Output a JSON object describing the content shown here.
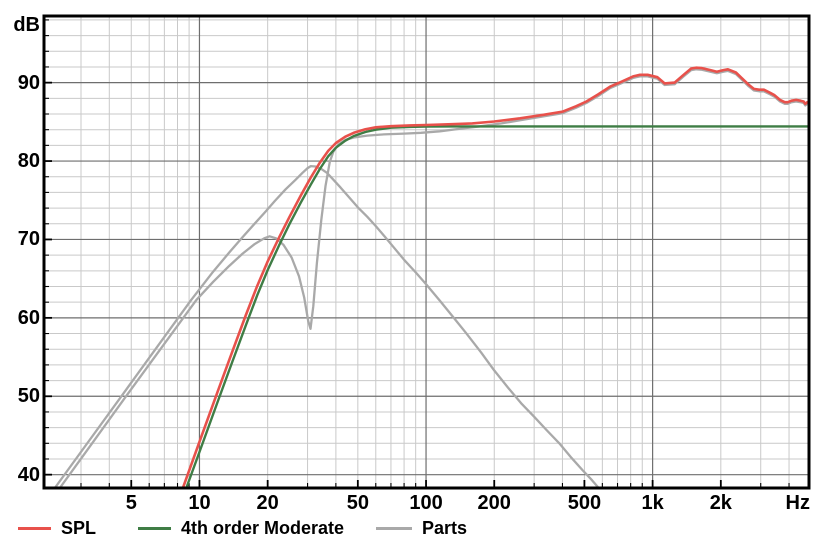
{
  "chart_data": {
    "type": "line",
    "title": "",
    "x_axis": {
      "unit_label": "Hz",
      "scale": "log",
      "min": 2.06,
      "max": 4900,
      "tick_values": [
        5,
        10,
        20,
        50,
        100,
        200,
        500,
        1000,
        2000
      ],
      "tick_labels": [
        "5",
        "10",
        "20",
        "50",
        "100",
        "200",
        "500",
        "1k",
        "2k"
      ],
      "major_values": [
        10,
        100,
        1000
      ]
    },
    "y_axis": {
      "unit_label": "dB",
      "min": 38.3,
      "max": 98.5,
      "tick_values": [
        90,
        80,
        70,
        60,
        50,
        40
      ],
      "minor_step": 2
    },
    "grid": {
      "minor_color": "#c9c9c9",
      "major_color": "#6e6e6e",
      "border_color": "#000000"
    },
    "series": [
      {
        "name": "Parts",
        "color": "#a9a9a9",
        "width": 2.3,
        "lines": [
          [
            [
              2.42,
              38.3
            ],
            [
              3.4,
              44.2
            ],
            [
              4.8,
              50.2
            ],
            [
              6.8,
              56.2
            ],
            [
              9.7,
              62.3
            ],
            [
              11.5,
              64.6
            ],
            [
              13.5,
              66.6
            ],
            [
              15.5,
              68.2
            ],
            [
              17.5,
              69.4
            ],
            [
              19.3,
              70.15
            ],
            [
              20.4,
              70.4
            ],
            [
              21.8,
              70.15
            ],
            [
              23.5,
              69.3
            ],
            [
              25.5,
              67.7
            ],
            [
              27.5,
              65.3
            ],
            [
              29,
              62.6
            ],
            [
              30.2,
              59.6
            ],
            [
              30.9,
              58.6
            ],
            [
              31.8,
              61.5
            ],
            [
              33,
              67.0
            ],
            [
              34.5,
              72.5
            ],
            [
              36,
              76.8
            ],
            [
              37.6,
              79.9
            ],
            [
              39,
              81.2
            ],
            [
              41,
              82.1
            ],
            [
              44,
              82.7
            ],
            [
              48,
              83.0
            ],
            [
              55,
              83.25
            ],
            [
              65,
              83.4
            ],
            [
              80,
              83.5
            ],
            [
              95,
              83.6
            ],
            [
              115,
              83.8
            ],
            [
              140,
              84.1
            ],
            [
              175,
              84.45
            ],
            [
              215,
              84.8
            ],
            [
              260,
              85.2
            ],
            [
              330,
              85.7
            ],
            [
              400,
              86.1
            ],
            [
              460,
              86.8
            ],
            [
              510,
              87.4
            ],
            [
              575,
              88.3
            ],
            [
              650,
              89.3
            ],
            [
              725,
              89.9
            ],
            [
              820,
              90.6
            ],
            [
              880,
              90.8
            ],
            [
              950,
              90.8
            ],
            [
              1050,
              90.5
            ],
            [
              1130,
              89.7
            ],
            [
              1250,
              89.8
            ],
            [
              1370,
              90.8
            ],
            [
              1480,
              91.6
            ],
            [
              1560,
              91.7
            ],
            [
              1650,
              91.65
            ],
            [
              1800,
              91.4
            ],
            [
              1920,
              91.2
            ],
            [
              2050,
              91.4
            ],
            [
              2150,
              91.5
            ],
            [
              2330,
              91.1
            ],
            [
              2450,
              90.5
            ],
            [
              2640,
              89.6
            ],
            [
              2800,
              89.0
            ],
            [
              2950,
              88.9
            ],
            [
              3100,
              88.9
            ],
            [
              3300,
              88.5
            ],
            [
              3450,
              88.2
            ],
            [
              3650,
              87.6
            ],
            [
              3830,
              87.3
            ],
            [
              3950,
              87.3
            ],
            [
              4100,
              87.5
            ],
            [
              4300,
              87.6
            ],
            [
              4500,
              87.5
            ],
            [
              4640,
              87.4
            ],
            [
              4720,
              87.1
            ],
            [
              4820,
              87.3
            ],
            [
              4900,
              87.2
            ]
          ],
          [
            [
              2.3,
              38.3
            ],
            [
              3.25,
              44.3
            ],
            [
              4.6,
              50.3
            ],
            [
              6.5,
              56.3
            ],
            [
              9.2,
              62.3
            ],
            [
              11.5,
              65.9
            ],
            [
              13.5,
              68.3
            ],
            [
              15.5,
              70.3
            ],
            [
              17.5,
              72.0
            ],
            [
              19.5,
              73.5
            ],
            [
              21.5,
              74.9
            ],
            [
              24,
              76.4
            ],
            [
              26.5,
              77.6
            ],
            [
              28.5,
              78.5
            ],
            [
              30,
              79.1
            ],
            [
              31,
              79.35
            ],
            [
              32.5,
              79.3
            ],
            [
              34.5,
              79.0
            ],
            [
              36.5,
              78.5
            ],
            [
              38.5,
              77.8
            ],
            [
              42,
              76.6
            ],
            [
              46,
              75.3
            ],
            [
              50,
              74.1
            ],
            [
              55,
              72.9
            ],
            [
              60,
              71.7
            ],
            [
              66,
              70.3
            ],
            [
              72,
              69.0
            ],
            [
              80,
              67.4
            ],
            [
              90,
              65.8
            ],
            [
              100,
              64.3
            ],
            [
              115,
              62.2
            ],
            [
              130,
              60.3
            ],
            [
              150,
              58.1
            ],
            [
              175,
              55.6
            ],
            [
              200,
              53.3
            ],
            [
              230,
              51.1
            ],
            [
              265,
              49.0
            ],
            [
              300,
              47.4
            ],
            [
              340,
              45.7
            ],
            [
              390,
              43.9
            ],
            [
              440,
              42.1
            ],
            [
              490,
              40.6
            ],
            [
              540,
              39.3
            ],
            [
              578,
              38.3
            ]
          ]
        ]
      },
      {
        "name": "4th order Moderate",
        "color": "#3f7d45",
        "width": 2.4,
        "lines": [
          [
            [
              8.75,
              38.3
            ],
            [
              10,
              42.9
            ],
            [
              12,
              49.2
            ],
            [
              14,
              54.5
            ],
            [
              16,
              59.0
            ],
            [
              18,
              62.9
            ],
            [
              20,
              66.1
            ],
            [
              22.5,
              69.3
            ],
            [
              25,
              72.0
            ],
            [
              28,
              74.7
            ],
            [
              31,
              77.0
            ],
            [
              34,
              79.0
            ],
            [
              37,
              80.6
            ],
            [
              40,
              81.7
            ],
            [
              44,
              82.6
            ],
            [
              48,
              83.2
            ],
            [
              54,
              83.7
            ],
            [
              60,
              84.0
            ],
            [
              70,
              84.25
            ],
            [
              85,
              84.35
            ],
            [
              100,
              84.4
            ],
            [
              130,
              84.42
            ],
            [
              4900,
              84.42
            ]
          ]
        ]
      },
      {
        "name": "SPL",
        "color": "#e8514b",
        "width": 2.6,
        "lines": [
          [
            [
              8.45,
              38.3
            ],
            [
              10,
              44.2
            ],
            [
              12,
              50.5
            ],
            [
              14,
              55.8
            ],
            [
              16,
              60.3
            ],
            [
              18,
              64.1
            ],
            [
              20,
              67.2
            ],
            [
              22.5,
              70.3
            ],
            [
              25,
              72.9
            ],
            [
              28,
              75.6
            ],
            [
              31,
              77.9
            ],
            [
              34,
              79.8
            ],
            [
              37,
              81.3
            ],
            [
              40,
              82.3
            ],
            [
              44,
              83.1
            ],
            [
              48,
              83.6
            ],
            [
              54,
              84.05
            ],
            [
              60,
              84.3
            ],
            [
              70,
              84.45
            ],
            [
              85,
              84.55
            ],
            [
              100,
              84.6
            ],
            [
              130,
              84.7
            ],
            [
              160,
              84.8
            ],
            [
              200,
              85.05
            ],
            [
              260,
              85.45
            ],
            [
              330,
              85.9
            ],
            [
              400,
              86.3
            ],
            [
              460,
              87.0
            ],
            [
              510,
              87.6
            ],
            [
              575,
              88.5
            ],
            [
              650,
              89.5
            ],
            [
              725,
              90.1
            ],
            [
              820,
              90.8
            ],
            [
              880,
              91.0
            ],
            [
              950,
              91.0
            ],
            [
              1050,
              90.7
            ],
            [
              1130,
              89.9
            ],
            [
              1250,
              90.0
            ],
            [
              1370,
              91.0
            ],
            [
              1480,
              91.8
            ],
            [
              1560,
              91.9
            ],
            [
              1650,
              91.85
            ],
            [
              1800,
              91.6
            ],
            [
              1920,
              91.4
            ],
            [
              2050,
              91.6
            ],
            [
              2150,
              91.7
            ],
            [
              2330,
              91.3
            ],
            [
              2450,
              90.7
            ],
            [
              2640,
              89.8
            ],
            [
              2800,
              89.2
            ],
            [
              2950,
              89.1
            ],
            [
              3100,
              89.1
            ],
            [
              3300,
              88.7
            ],
            [
              3450,
              88.4
            ],
            [
              3650,
              87.8
            ],
            [
              3830,
              87.5
            ],
            [
              3950,
              87.5
            ],
            [
              4100,
              87.7
            ],
            [
              4300,
              87.8
            ],
            [
              4500,
              87.7
            ],
            [
              4640,
              87.6
            ],
            [
              4720,
              87.3
            ],
            [
              4820,
              87.5
            ],
            [
              4900,
              87.4
            ]
          ]
        ]
      }
    ],
    "legend_order": [
      2,
      1,
      0
    ]
  }
}
